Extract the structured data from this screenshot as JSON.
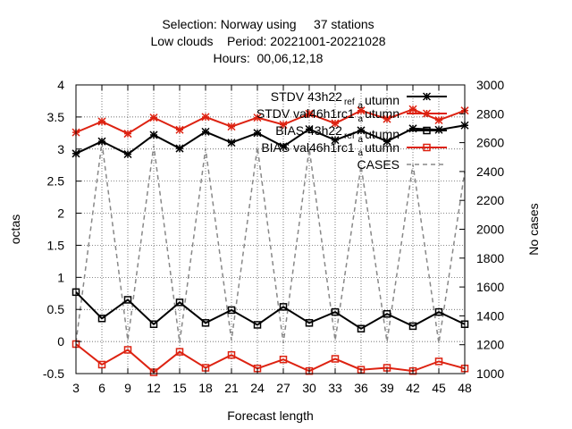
{
  "chart_data": {
    "type": "line",
    "title_lines": [
      "Selection: Norway using     37 stations",
      "Low clouds    Period: 20221001-20221028",
      "Hours:  00,06,12,18"
    ],
    "xlabel": "Forecast length",
    "ylabel": "octas",
    "y2label": "No cases",
    "x": [
      3,
      6,
      9,
      12,
      15,
      18,
      21,
      24,
      27,
      30,
      33,
      36,
      39,
      42,
      45,
      48
    ],
    "xlim": [
      3,
      48
    ],
    "ylim": [
      -0.5,
      4
    ],
    "y2lim": [
      1000,
      3000
    ],
    "yticks": [
      -0.5,
      0,
      0.5,
      1,
      1.5,
      2,
      2.5,
      3,
      3.5,
      4
    ],
    "yticklabels": [
      "-0.5",
      "0",
      "0.5",
      "1",
      "1.5",
      "2",
      "2.5",
      "3",
      "3.5",
      "4"
    ],
    "y2ticks": [
      1000,
      1200,
      1400,
      1600,
      1800,
      2000,
      2200,
      2400,
      2600,
      2800,
      3000
    ],
    "y2ticklabels": [
      "1000",
      "1200",
      "1400",
      "1600",
      "1800",
      "2000",
      "2200",
      "2400",
      "2600",
      "2800",
      "3000"
    ],
    "xticklabels": [
      "3",
      "6",
      "9",
      "12",
      "15",
      "18",
      "21",
      "24",
      "27",
      "30",
      "33",
      "36",
      "39",
      "42",
      "45",
      "48"
    ],
    "grid": true,
    "legend_position": "top-right",
    "series": [
      {
        "name": "STDV 43h22_ref_autumn",
        "legend_main": "STDV 43h22",
        "legend_sub1": "ref",
        "legend_mid": "a",
        "legend_tail": "utumn",
        "color": "#000000",
        "marker": "star",
        "axis": "y",
        "values": [
          2.93,
          3.12,
          2.92,
          3.22,
          3.01,
          3.27,
          3.1,
          3.25,
          3.04,
          3.31,
          3.14,
          3.29,
          3.12,
          3.32,
          3.3,
          3.37
        ]
      },
      {
        "name": "STDV val46h1rc1_autumn",
        "legend_main": "STDV val46h1rc1",
        "legend_sub1": "",
        "legend_mid": "a",
        "legend_tail": "utumn",
        "color": "#dd2211",
        "marker": "star",
        "axis": "y",
        "values": [
          3.26,
          3.43,
          3.24,
          3.49,
          3.3,
          3.5,
          3.35,
          3.49,
          3.38,
          3.55,
          3.4,
          3.6,
          3.47,
          3.62,
          3.45,
          3.6
        ]
      },
      {
        "name": "BIAS 43h22_ref_autumn",
        "legend_main": "BIAS 43h22",
        "legend_sub1": "ref",
        "legend_mid": "a",
        "legend_tail": "utumn",
        "color": "#000000",
        "marker": "square",
        "axis": "y",
        "values": [
          0.77,
          0.36,
          0.65,
          0.27,
          0.61,
          0.29,
          0.49,
          0.26,
          0.54,
          0.29,
          0.46,
          0.2,
          0.43,
          0.24,
          0.46,
          0.27
        ]
      },
      {
        "name": "BIAS val46h1rc1_autumn",
        "legend_main": "BIAS val46h1rc1",
        "legend_sub1": "",
        "legend_mid": "a",
        "legend_tail": "utumn",
        "color": "#dd2211",
        "marker": "square",
        "axis": "y",
        "values": [
          -0.04,
          -0.36,
          -0.13,
          -0.48,
          -0.16,
          -0.41,
          -0.21,
          -0.42,
          -0.28,
          -0.46,
          -0.27,
          -0.44,
          -0.41,
          -0.46,
          -0.31,
          -0.42
        ]
      },
      {
        "name": "CASES",
        "legend_main": "CASES",
        "legend_sub1": "",
        "legend_mid": "",
        "legend_tail": "",
        "color": "#888888",
        "marker": "none",
        "dashed": true,
        "axis": "y2",
        "values": [
          1215,
          2600,
          1230,
          2580,
          1215,
          2560,
          1230,
          2570,
          1210,
          2560,
          1230,
          2440,
          1220,
          2450,
          1210,
          2400
        ]
      }
    ]
  }
}
